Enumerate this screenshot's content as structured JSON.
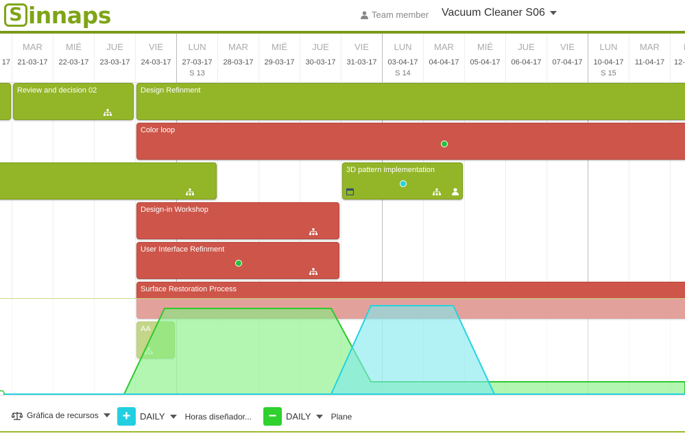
{
  "header": {
    "logo_letter": "S",
    "logo_text": "innaps",
    "team_label": "Team member",
    "project_title": "Vacuum Cleaner S06"
  },
  "calendar": {
    "days": [
      {
        "name": "",
        "date": "17",
        "week": ""
      },
      {
        "name": "MAR",
        "date": "21-03-17",
        "week": ""
      },
      {
        "name": "MIÉ",
        "date": "22-03-17",
        "week": ""
      },
      {
        "name": "JUE",
        "date": "23-03-17",
        "week": ""
      },
      {
        "name": "VIE",
        "date": "24-03-17",
        "week": ""
      },
      {
        "name": "LUN",
        "date": "27-03-17",
        "week": "S 13"
      },
      {
        "name": "MAR",
        "date": "28-03-17",
        "week": ""
      },
      {
        "name": "MIÉ",
        "date": "29-03-17",
        "week": ""
      },
      {
        "name": "JUE",
        "date": "30-03-17",
        "week": ""
      },
      {
        "name": "VIE",
        "date": "31-03-17",
        "week": ""
      },
      {
        "name": "LUN",
        "date": "03-04-17",
        "week": "S 14"
      },
      {
        "name": "MAR",
        "date": "04-04-17",
        "week": ""
      },
      {
        "name": "MIÉ",
        "date": "05-04-17",
        "week": ""
      },
      {
        "name": "JUE",
        "date": "06-04-17",
        "week": ""
      },
      {
        "name": "VIE",
        "date": "07-04-17",
        "week": ""
      },
      {
        "name": "LUN",
        "date": "10-04-17",
        "week": "S 15"
      },
      {
        "name": "MAR",
        "date": "11-04-17",
        "week": ""
      },
      {
        "name": "M",
        "date": "12-",
        "week": ""
      }
    ]
  },
  "tasks": {
    "review": "Review and decision 02",
    "design_refinment": "Design Refinment",
    "color_loop": "Color loop",
    "pattern": "3D pattern implementation",
    "workshop": "Design-in Workshop",
    "ui_refinment": "User Interface Refinment",
    "surface": "Surface Restoration Process",
    "aa": "AA"
  },
  "colors": {
    "accent_green": "#7b9a18",
    "task_green": "#93b528",
    "task_red": "#cd5549",
    "chart_green": "#2ec82e",
    "chart_cyan": "#22d3e0"
  },
  "footer": {
    "chart_label": "Gráfica de recursos",
    "add_symbol": "+",
    "remove_symbol": "−",
    "period1": "DAILY",
    "resource1": "Horas diseñador...",
    "period2": "DAILY",
    "resource2": "Plane"
  }
}
